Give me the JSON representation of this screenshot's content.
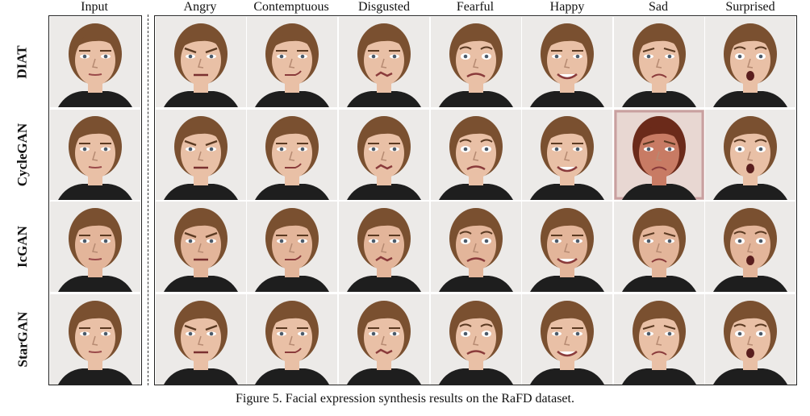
{
  "columns": [
    "Input",
    "Angry",
    "Contemptuous",
    "Disgusted",
    "Fearful",
    "Happy",
    "Sad",
    "Surprised"
  ],
  "rows": [
    "DIAT",
    "CycleGAN",
    "IcGAN",
    "StarGAN"
  ],
  "caption": "Figure 5. Facial expression synthesis results on the RaFD dataset.",
  "image_grid": {
    "DIAT": [
      "face",
      "face",
      "face",
      "face",
      "face",
      "face",
      "face",
      "face"
    ],
    "CycleGAN": [
      "face",
      "face",
      "face",
      "face",
      "face",
      "face",
      "distorted-face",
      "face"
    ],
    "IcGAN": [
      "face",
      "face",
      "face",
      "face",
      "face",
      "face",
      "face",
      "face"
    ],
    "StarGAN": [
      "face",
      "face",
      "face",
      "face",
      "face",
      "face",
      "face",
      "face"
    ]
  }
}
